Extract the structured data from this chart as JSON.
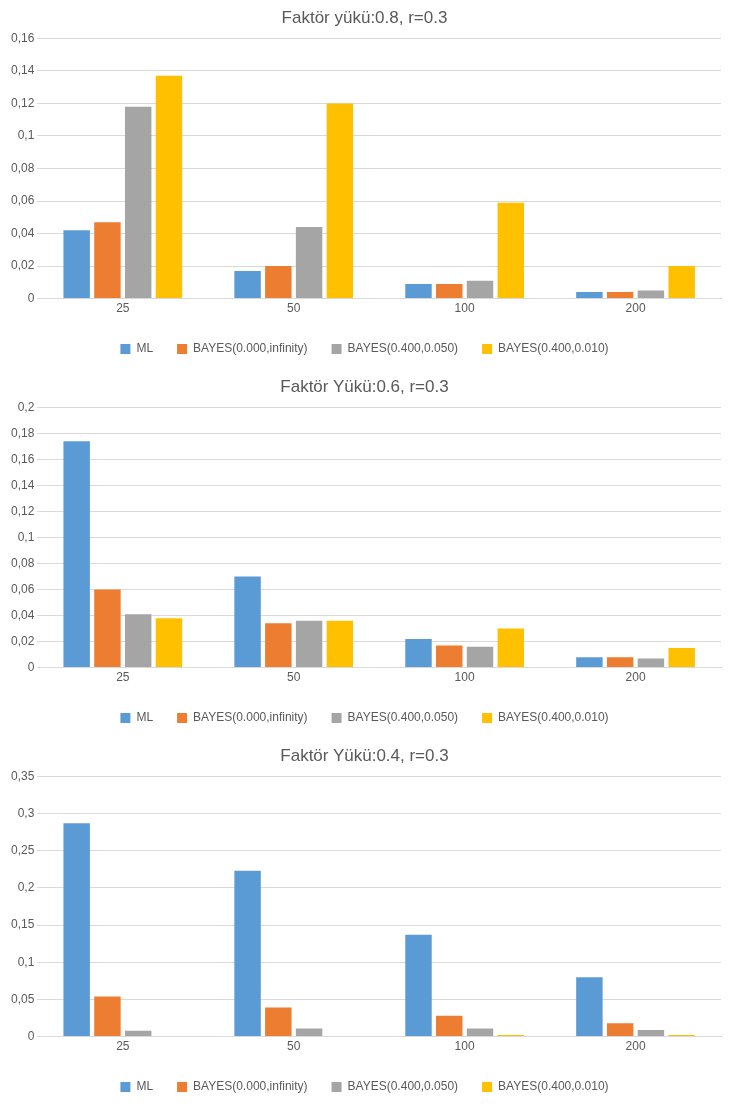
{
  "chart_data": [
    {
      "type": "bar",
      "title": "Faktör yükü:0.8, r=0.3",
      "categories": [
        "25",
        "50",
        "100",
        "200"
      ],
      "series": [
        {
          "name": "ML",
          "color": "#5b9bd5",
          "values": [
            0.042,
            0.017,
            0.009,
            0.004
          ]
        },
        {
          "name": "BAYES(0.000,infinity)",
          "color": "#ed7d31",
          "values": [
            0.047,
            0.02,
            0.009,
            0.004
          ]
        },
        {
          "name": "BAYES(0.400,0.050)",
          "color": "#a5a5a5",
          "values": [
            0.118,
            0.044,
            0.011,
            0.005
          ]
        },
        {
          "name": "BAYES(0.400,0.010)",
          "color": "#ffc000",
          "values": [
            0.137,
            0.12,
            0.059,
            0.02
          ]
        }
      ],
      "ylim": [
        0,
        0.16
      ],
      "yticks": [
        {
          "value": 0,
          "label": "0"
        },
        {
          "value": 0.02,
          "label": "0,02"
        },
        {
          "value": 0.04,
          "label": "0,04"
        },
        {
          "value": 0.06,
          "label": "0,06"
        },
        {
          "value": 0.08,
          "label": "0,08"
        },
        {
          "value": 0.1,
          "label": "0,1"
        },
        {
          "value": 0.12,
          "label": "0,12"
        },
        {
          "value": 0.14,
          "label": "0,14"
        },
        {
          "value": 0.16,
          "label": "0,16"
        }
      ],
      "grid": "y",
      "legend": "bottom"
    },
    {
      "type": "bar",
      "title": "Faktör Yükü:0.6, r=0.3",
      "categories": [
        "25",
        "50",
        "100",
        "200"
      ],
      "series": [
        {
          "name": "ML",
          "color": "#5b9bd5",
          "values": [
            0.174,
            0.07,
            0.022,
            0.008
          ]
        },
        {
          "name": "BAYES(0.000,infinity)",
          "color": "#ed7d31",
          "values": [
            0.06,
            0.034,
            0.017,
            0.008
          ]
        },
        {
          "name": "BAYES(0.400,0.050)",
          "color": "#a5a5a5",
          "values": [
            0.041,
            0.036,
            0.016,
            0.007
          ]
        },
        {
          "name": "BAYES(0.400,0.010)",
          "color": "#ffc000",
          "values": [
            0.038,
            0.036,
            0.03,
            0.015
          ]
        }
      ],
      "ylim": [
        0,
        0.2
      ],
      "yticks": [
        {
          "value": 0,
          "label": "0"
        },
        {
          "value": 0.02,
          "label": "0,02"
        },
        {
          "value": 0.04,
          "label": "0,04"
        },
        {
          "value": 0.06,
          "label": "0,06"
        },
        {
          "value": 0.08,
          "label": "0,08"
        },
        {
          "value": 0.1,
          "label": "0,1"
        },
        {
          "value": 0.12,
          "label": "0,12"
        },
        {
          "value": 0.14,
          "label": "0,14"
        },
        {
          "value": 0.16,
          "label": "0,16"
        },
        {
          "value": 0.18,
          "label": "0,18"
        },
        {
          "value": 0.2,
          "label": "0,2"
        }
      ],
      "grid": "y",
      "legend": "bottom"
    },
    {
      "type": "bar",
      "title": "Faktör Yükü:0.4, r=0.3",
      "categories": [
        "25",
        "50",
        "100",
        "200"
      ],
      "series": [
        {
          "name": "ML",
          "color": "#5b9bd5",
          "values": [
            0.287,
            0.223,
            0.137,
            0.08
          ]
        },
        {
          "name": "BAYES(0.000,infinity)",
          "color": "#ed7d31",
          "values": [
            0.054,
            0.039,
            0.028,
            0.018
          ]
        },
        {
          "name": "BAYES(0.400,0.050)",
          "color": "#a5a5a5",
          "values": [
            0.008,
            0.011,
            0.011,
            0.009
          ]
        },
        {
          "name": "BAYES(0.400,0.010)",
          "color": "#ffc000",
          "values": [
            0,
            0,
            0.002,
            0.002
          ]
        }
      ],
      "ylim": [
        0,
        0.35
      ],
      "yticks": [
        {
          "value": 0,
          "label": "0"
        },
        {
          "value": 0.05,
          "label": "0,05"
        },
        {
          "value": 0.1,
          "label": "0,1"
        },
        {
          "value": 0.15,
          "label": "0,15"
        },
        {
          "value": 0.2,
          "label": "0,2"
        },
        {
          "value": 0.25,
          "label": "0,25"
        },
        {
          "value": 0.3,
          "label": "0,3"
        },
        {
          "value": 0.35,
          "label": "0,35"
        }
      ],
      "grid": "y",
      "legend": "bottom"
    }
  ]
}
